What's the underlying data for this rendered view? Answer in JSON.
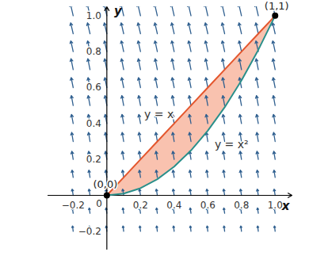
{
  "chart_data": {
    "type": "region",
    "x_label": "x",
    "y_label": "y",
    "xlim": [
      -0.35,
      1.1
    ],
    "ylim": [
      -0.3,
      1.05
    ],
    "xticks": [
      {
        "value": -0.2,
        "label": "−0.2"
      },
      0,
      0.2,
      0.4,
      0.6,
      0.8,
      {
        "value": 1,
        "label": "1.0"
      }
    ],
    "yticks": [
      {
        "value": -0.2,
        "label": "−0.2"
      },
      0.2,
      0.4,
      0.6,
      0.8,
      {
        "value": 1,
        "label": "1.0"
      }
    ],
    "grid": false,
    "series": [
      {
        "name": "y = x",
        "color": "#e4572e",
        "x": [
          0,
          0.1,
          0.2,
          0.3,
          0.4,
          0.5,
          0.6,
          0.7,
          0.8,
          0.9,
          1
        ],
        "values": [
          0,
          0.1,
          0.2,
          0.3,
          0.4,
          0.5,
          0.6,
          0.7,
          0.8,
          0.9,
          1
        ]
      },
      {
        "name": "y = x²",
        "color": "#2a8f8a",
        "x": [
          0,
          0.1,
          0.2,
          0.3,
          0.4,
          0.5,
          0.6,
          0.7,
          0.8,
          0.9,
          1
        ],
        "values": [
          0,
          0.01,
          0.04,
          0.09,
          0.16,
          0.25,
          0.36,
          0.49,
          0.64,
          0.81,
          1
        ]
      }
    ],
    "region": {
      "color": "#f7b39b",
      "x": [
        0,
        0.1,
        0.2,
        0.3,
        0.4,
        0.5,
        0.6,
        0.7,
        0.8,
        0.9,
        1
      ],
      "upper": [
        0,
        0.1,
        0.2,
        0.3,
        0.4,
        0.5,
        0.6,
        0.7,
        0.8,
        0.9,
        1
      ],
      "lower": [
        0,
        0.01,
        0.04,
        0.09,
        0.16,
        0.25,
        0.36,
        0.49,
        0.64,
        0.81,
        1
      ]
    },
    "points": [
      {
        "x": 0,
        "y": 0,
        "label": "(0,0)"
      },
      {
        "x": 1,
        "y": 1,
        "label": "(1,1)"
      }
    ],
    "field": {
      "color": "#2f5f8f",
      "x": [
        -0.2,
        -0.1,
        0,
        0.1,
        0.2,
        0.3,
        0.4,
        0.5,
        0.6,
        0.7,
        0.8,
        0.9,
        1
      ],
      "y": [
        -0.2,
        -0.1,
        0,
        0.1,
        0.2,
        0.3,
        0.4,
        0.5,
        0.6,
        0.7,
        0.8,
        0.9,
        1
      ],
      "u": [
        -0.004,
        -0.005,
        -0.006,
        -0.007,
        -0.008,
        -0.009,
        -0.01,
        -0.011,
        -0.012,
        -0.013,
        -0.014,
        -0.015,
        -0.016
      ],
      "v": [
        0.03,
        0.03,
        0.035,
        0.04,
        0.045,
        0.05,
        0.05,
        0.055,
        0.055,
        0.06,
        0.06,
        0.06,
        0.065
      ]
    }
  }
}
